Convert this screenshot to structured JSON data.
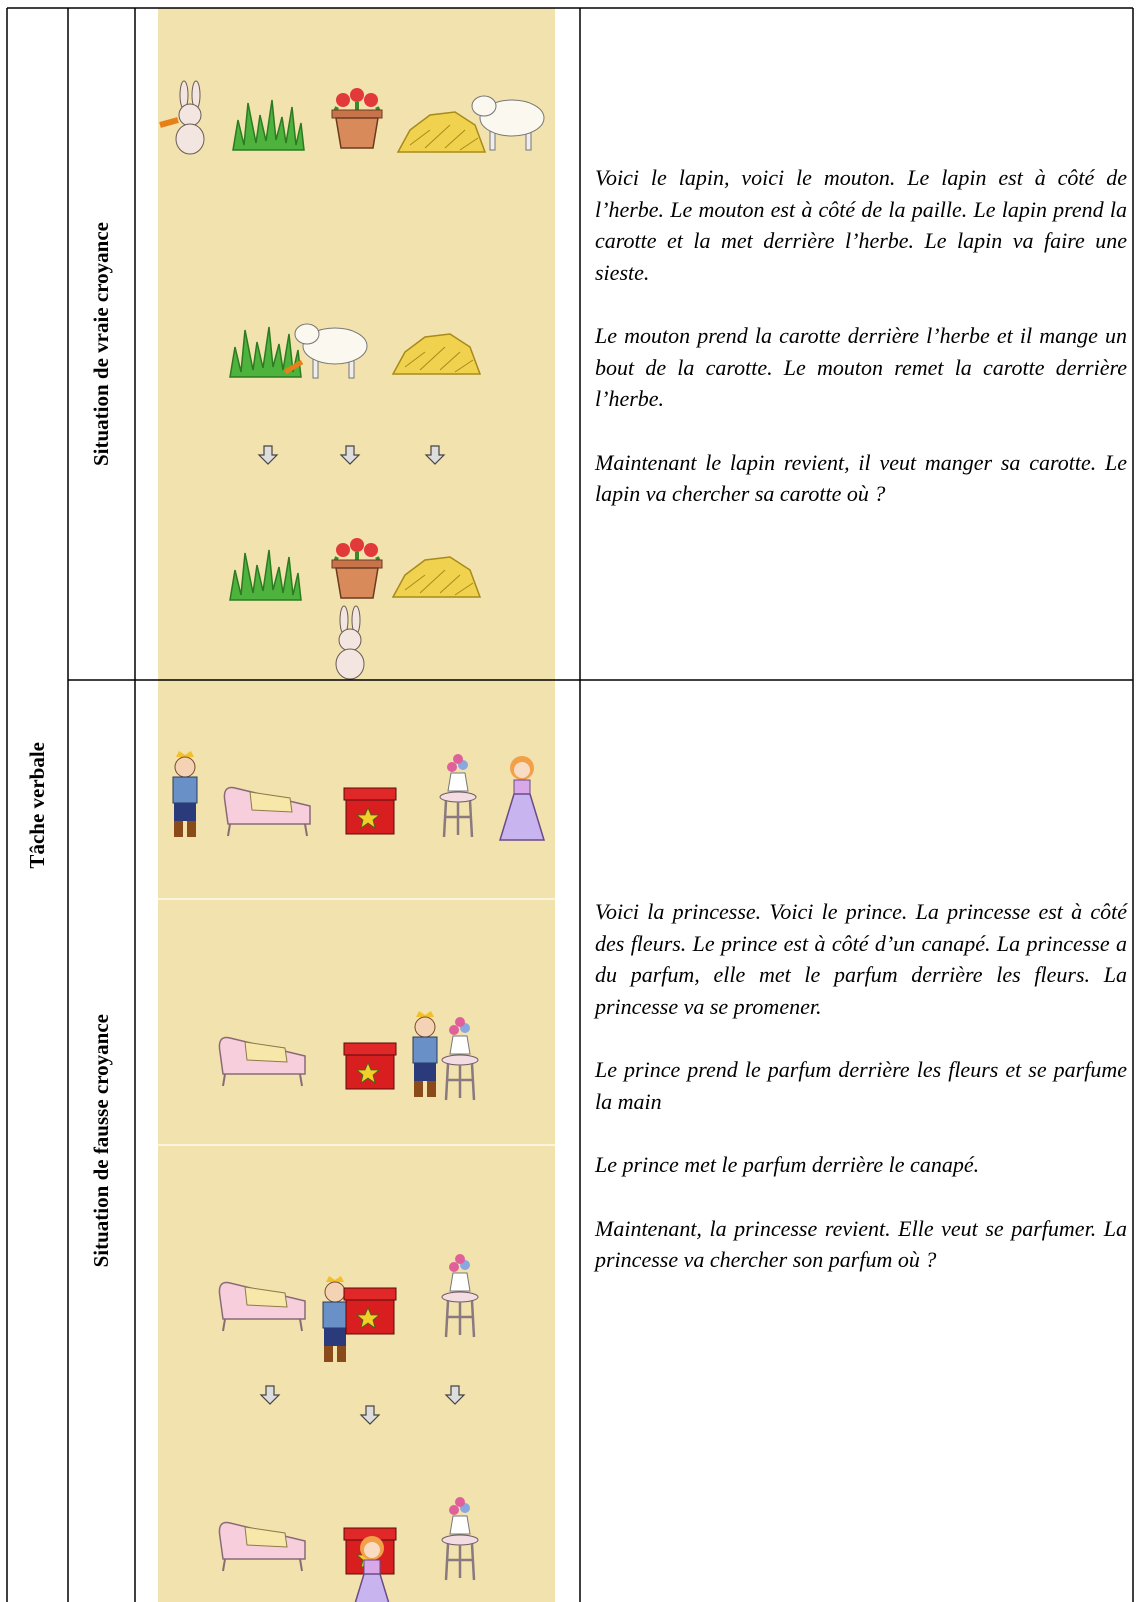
{
  "table": {
    "header": "Tâche verbale",
    "rows": [
      {
        "label": "Situation de vraie croyance",
        "paragraphs": [
          "Voici le lapin, voici le mouton. Le lapin est à côté de l’herbe. Le mouton est à côté de la paille. Le lapin prend la carotte et la met derrière l’herbe. Le lapin va faire une sieste.",
          "Le mouton prend la carotte derrière l’herbe et il mange un bout de la carotte. Le mouton remet la carotte derrière l’herbe.",
          "Maintenant le lapin revient, il veut manger sa carotte. Le lapin va chercher sa carotte où ?"
        ]
      },
      {
        "label": "Situation de fausse croyance",
        "paragraphs": [
          "Voici la princesse. Voici le prince. La princesse est à côté des fleurs. Le prince est à côté d’un canapé. La princesse a du parfum, elle met le parfum derrière les fleurs. La princesse va se promener.",
          "Le prince prend le parfum derrière les fleurs et se parfume la main",
          "Le prince met le parfum derrière le canapé.",
          "Maintenant, la princesse revient. Elle veut se parfumer. La princesse va chercher son parfum où ?"
        ]
      }
    ]
  }
}
